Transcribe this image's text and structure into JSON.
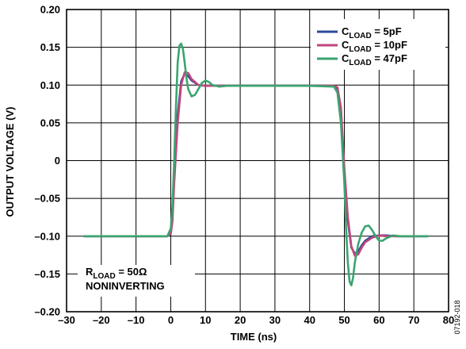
{
  "chart_data": {
    "type": "line",
    "xlabel": "TIME (ns)",
    "ylabel": "OUTPUT VOLTAGE (V)",
    "xlim": [
      -30,
      80
    ],
    "ylim": [
      -0.2,
      0.2
    ],
    "x_ticks": [
      -30,
      -20,
      -10,
      0,
      10,
      20,
      30,
      40,
      50,
      60,
      70,
      80
    ],
    "x_tick_labels": [
      "–30",
      "–20",
      "–10",
      "0",
      "10",
      "20",
      "30",
      "40",
      "50",
      "60",
      "70",
      "80"
    ],
    "y_ticks": [
      0.2,
      0.15,
      0.1,
      0.05,
      0,
      -0.05,
      -0.1,
      -0.15,
      -0.2
    ],
    "y_tick_labels": [
      "0.20",
      "0.15",
      "0.10",
      "0.05",
      "0",
      "–0.05",
      "–0.10",
      "–0.15",
      "–0.20"
    ],
    "grid": true,
    "legend_placement": "top-right",
    "series": [
      {
        "name_main": "C",
        "name_sub": "LOAD",
        "name_rest": " = 5pF",
        "color": "#2e4a9a",
        "x": [
          -25,
          -1,
          0,
          0.5,
          1,
          2,
          3,
          4,
          5,
          6,
          8,
          10,
          12,
          15,
          20,
          30,
          40,
          47,
          48,
          49,
          50,
          51,
          52,
          53,
          54,
          55,
          56,
          58,
          60,
          62,
          65,
          70,
          74
        ],
        "y": [
          -0.1,
          -0.1,
          -0.095,
          -0.07,
          -0.02,
          0.06,
          0.105,
          0.115,
          0.112,
          0.106,
          0.1,
          0.099,
          0.099,
          0.099,
          0.099,
          0.099,
          0.099,
          0.099,
          0.095,
          0.06,
          -0.02,
          -0.08,
          -0.115,
          -0.123,
          -0.12,
          -0.112,
          -0.106,
          -0.1,
          -0.099,
          -0.099,
          -0.1,
          -0.1,
          -0.1
        ]
      },
      {
        "name_main": "C",
        "name_sub": "LOAD",
        "name_rest": " = 10pF",
        "color": "#c0467b",
        "x": [
          -25,
          -1,
          0,
          0.5,
          1,
          2,
          3,
          4,
          5,
          6,
          8,
          10,
          12,
          15,
          20,
          30,
          40,
          47,
          48,
          49,
          50,
          51,
          52,
          53,
          54,
          55,
          56,
          58,
          60,
          62,
          65,
          70,
          74
        ],
        "y": [
          -0.1,
          -0.1,
          -0.097,
          -0.08,
          -0.03,
          0.05,
          0.1,
          0.117,
          0.116,
          0.108,
          0.1,
          0.099,
          0.099,
          0.099,
          0.099,
          0.099,
          0.099,
          0.099,
          0.097,
          0.07,
          -0.01,
          -0.075,
          -0.113,
          -0.126,
          -0.124,
          -0.115,
          -0.108,
          -0.102,
          -0.099,
          -0.1,
          -0.1,
          -0.1,
          -0.1
        ]
      },
      {
        "name_main": "C",
        "name_sub": "LOAD",
        "name_rest": " = 47pF",
        "color": "#3aa470",
        "x": [
          -25,
          -1,
          0,
          0.5,
          1,
          1.5,
          2,
          2.5,
          3,
          3.5,
          4,
          4.5,
          5,
          6,
          7,
          8,
          9,
          10,
          11,
          12,
          14,
          16,
          20,
          30,
          40,
          47,
          48,
          49,
          50,
          50.5,
          51,
          51.5,
          52,
          52.5,
          53,
          54,
          55,
          56,
          57,
          58,
          59,
          60,
          61,
          62,
          64,
          66,
          70,
          74
        ],
        "y": [
          -0.1,
          -0.1,
          -0.09,
          -0.06,
          0.0,
          0.07,
          0.13,
          0.152,
          0.155,
          0.148,
          0.13,
          0.11,
          0.095,
          0.085,
          0.087,
          0.095,
          0.103,
          0.106,
          0.104,
          0.1,
          0.098,
          0.099,
          0.099,
          0.099,
          0.099,
          0.098,
          0.09,
          0.05,
          -0.03,
          -0.09,
          -0.135,
          -0.16,
          -0.165,
          -0.155,
          -0.135,
          -0.11,
          -0.095,
          -0.087,
          -0.086,
          -0.092,
          -0.1,
          -0.106,
          -0.106,
          -0.103,
          -0.099,
          -0.1,
          -0.1,
          -0.1
        ]
      }
    ],
    "annotation_lines": [
      {
        "main": "R",
        "sub": "LOAD",
        "rest": " = 50Ω"
      },
      {
        "main": "NONINVERTING",
        "sub": "",
        "rest": ""
      }
    ],
    "figure_id": "07192-018"
  }
}
